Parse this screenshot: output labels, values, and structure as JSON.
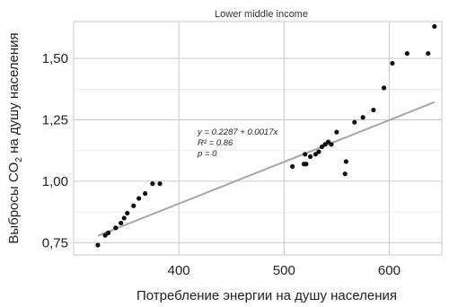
{
  "chart_data": {
    "type": "scatter",
    "title": "Lower middle income",
    "xlabel": "Потребление энергии на душу населения",
    "ylabel": "Выбросы CO₂ на душу населения",
    "ylabel_parts": {
      "before": "Выбросы CO",
      "sub": "2",
      "after": " на душу населения"
    },
    "xlim": [
      300,
      650
    ],
    "ylim": [
      0.7,
      1.65
    ],
    "x_ticks": [
      400,
      500,
      600
    ],
    "x_tick_labels": [
      "400",
      "500",
      "600"
    ],
    "y_ticks": [
      0.75,
      1.0,
      1.25,
      1.5
    ],
    "y_tick_labels": [
      "0,75",
      "1,00",
      "1,25",
      "1,50"
    ],
    "grid": true,
    "annotation": {
      "line1": "y = 0.2287 + 0.0017x",
      "line2": "R² = 0.86",
      "line3": "p = 0"
    },
    "regression": {
      "intercept": 0.2287,
      "slope": 0.0017,
      "x_range": [
        323,
        643
      ]
    },
    "points": [
      {
        "x": 323,
        "y": 0.74
      },
      {
        "x": 330,
        "y": 0.78
      },
      {
        "x": 333,
        "y": 0.79
      },
      {
        "x": 340,
        "y": 0.81
      },
      {
        "x": 345,
        "y": 0.83
      },
      {
        "x": 348,
        "y": 0.85
      },
      {
        "x": 351,
        "y": 0.87
      },
      {
        "x": 357,
        "y": 0.9
      },
      {
        "x": 362,
        "y": 0.93
      },
      {
        "x": 368,
        "y": 0.95
      },
      {
        "x": 375,
        "y": 0.99
      },
      {
        "x": 382,
        "y": 0.99
      },
      {
        "x": 508,
        "y": 1.06
      },
      {
        "x": 519,
        "y": 1.07
      },
      {
        "x": 521,
        "y": 1.07
      },
      {
        "x": 520,
        "y": 1.11
      },
      {
        "x": 525,
        "y": 1.1
      },
      {
        "x": 530,
        "y": 1.11
      },
      {
        "x": 533,
        "y": 1.12
      },
      {
        "x": 536,
        "y": 1.14
      },
      {
        "x": 539,
        "y": 1.15
      },
      {
        "x": 542,
        "y": 1.16
      },
      {
        "x": 545,
        "y": 1.15
      },
      {
        "x": 550,
        "y": 1.2
      },
      {
        "x": 558,
        "y": 1.03
      },
      {
        "x": 559,
        "y": 1.08
      },
      {
        "x": 567,
        "y": 1.24
      },
      {
        "x": 575,
        "y": 1.26
      },
      {
        "x": 585,
        "y": 1.29
      },
      {
        "x": 595,
        "y": 1.38
      },
      {
        "x": 603,
        "y": 1.48
      },
      {
        "x": 617,
        "y": 1.52
      },
      {
        "x": 637,
        "y": 1.52
      },
      {
        "x": 643,
        "y": 1.63
      }
    ],
    "colors": {
      "points": "#111111",
      "fit_line": "#a6a6a6",
      "grid": "#c9c9c9",
      "frame": "#c9c9c9"
    }
  }
}
